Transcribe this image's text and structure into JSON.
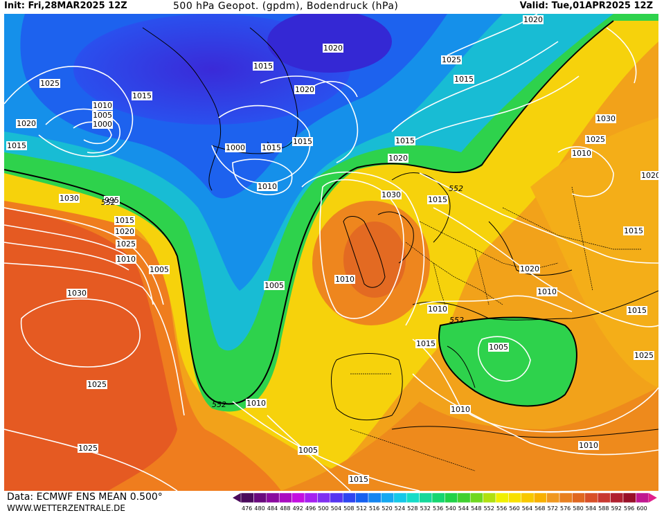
{
  "header": {
    "init": "Init: Fri,28MAR2025 12Z",
    "title": "500 hPa Geopot. (gpdm), Bodendruck (hPa)",
    "valid": "Valid: Tue,01APR2025 12Z"
  },
  "footer": {
    "data_source": "Data: ECMWF ENS MEAN 0.500°",
    "url": "WWW.WETTERZENTRALE.DE"
  },
  "legend": {
    "values": [
      "476",
      "480",
      "484",
      "488",
      "492",
      "496",
      "500",
      "504",
      "508",
      "512",
      "516",
      "520",
      "524",
      "528",
      "532",
      "536",
      "540",
      "544",
      "548",
      "552",
      "556",
      "560",
      "564",
      "568",
      "572",
      "576",
      "580",
      "584",
      "588",
      "592",
      "596",
      "600"
    ],
    "colors": [
      "#4b0b5c",
      "#6a0a7d",
      "#8a0a9e",
      "#a90cc0",
      "#c40fe0",
      "#a520f0",
      "#8030f0",
      "#5535f0",
      "#2f45f0",
      "#1560f0",
      "#1585f0",
      "#15a8f0",
      "#15c8e8",
      "#15dcc8",
      "#15d89a",
      "#15d670",
      "#20d248",
      "#40d030",
      "#70d820",
      "#b0e010",
      "#f0f000",
      "#f8e000",
      "#f8c800",
      "#f8b000",
      "#f09820",
      "#e88020",
      "#e06820",
      "#d85028",
      "#c83830",
      "#b02030",
      "#981028",
      "#c01890"
    ]
  },
  "map": {
    "isobar_labels": [
      "1025",
      "1020",
      "1015",
      "1010",
      "1005",
      "1000",
      "995",
      "1030",
      "1015",
      "1020",
      "1025",
      "1010",
      "1005",
      "1000",
      "1015",
      "1020",
      "1015",
      "1020",
      "1025",
      "1030",
      "1025",
      "1025",
      "1020",
      "1015",
      "1015",
      "1015",
      "1010",
      "1015",
      "1010",
      "1005",
      "1010",
      "1005",
      "1010",
      "1015",
      "1010",
      "1030",
      "1030",
      "1025",
      "1010",
      "1020",
      "1015",
      "1020",
      "1015",
      "1015",
      "1010",
      "1005",
      "1010",
      "1015",
      "1020",
      "1025"
    ],
    "geopot_labels": [
      "552",
      "552",
      "552",
      "552"
    ]
  }
}
